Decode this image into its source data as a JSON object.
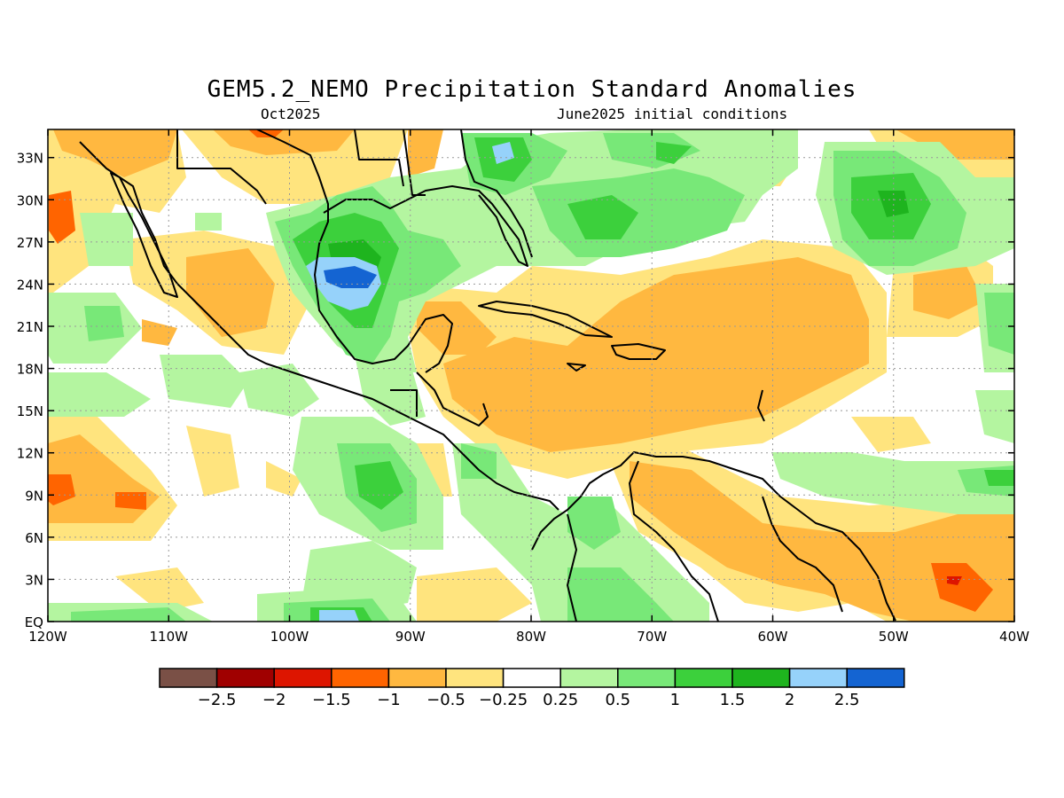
{
  "title": "GEM5.2_NEMO Precipitation Standard Anomalies",
  "subtitle_left": "Oct2025",
  "subtitle_right": "June2025 initial conditions",
  "chart_data": {
    "type": "heatmap",
    "title": "GEM5.2_NEMO Precipitation Standard Anomalies",
    "x_range": [
      -120,
      -40
    ],
    "y_range": [
      0,
      35
    ],
    "x_ticks": [
      "120W",
      "110W",
      "100W",
      "90W",
      "80W",
      "70W",
      "60W",
      "50W",
      "40W"
    ],
    "y_ticks": [
      "EQ",
      "3N",
      "6N",
      "9N",
      "12N",
      "15N",
      "18N",
      "21N",
      "24N",
      "27N",
      "30N",
      "33N"
    ],
    "grid": true,
    "colorbar": {
      "colors": [
        "#7a5046",
        "#a00000",
        "#dd1500",
        "#ff6400",
        "#ffb840",
        "#ffe47e",
        "#ffffff",
        "#b4f5a0",
        "#78e878",
        "#3cd03c",
        "#1eb41e",
        "#96d2fa",
        "#1464d2"
      ],
      "labels": [
        "−2.5",
        "−2",
        "−1.5",
        "−1",
        "−0.5",
        "−0.25",
        "0.25",
        "0.5",
        "1",
        "1.5",
        "2",
        "2.5"
      ]
    }
  }
}
